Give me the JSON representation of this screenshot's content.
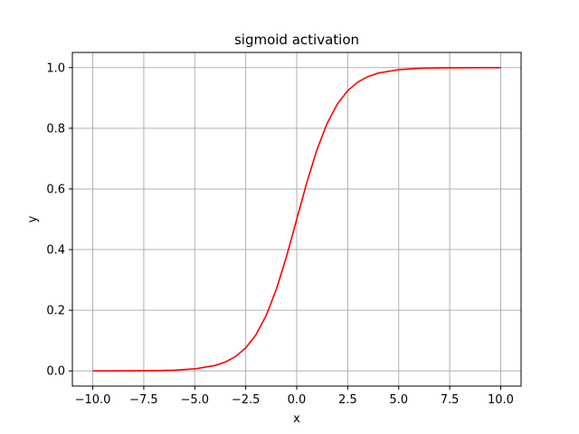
{
  "chart_data": {
    "type": "line",
    "title": "sigmoid activation",
    "xlabel": "x",
    "ylabel": "y",
    "xlim": [
      -11,
      11
    ],
    "ylim": [
      -0.05,
      1.05
    ],
    "grid": true,
    "x_ticks": [
      -10.0,
      -7.5,
      -5.0,
      -2.5,
      0.0,
      2.5,
      5.0,
      7.5,
      10.0
    ],
    "x_tick_labels": [
      "−10.0",
      "−7.5",
      "−5.0",
      "−2.5",
      "0.0",
      "2.5",
      "5.0",
      "7.5",
      "10.0"
    ],
    "y_ticks": [
      0.0,
      0.2,
      0.4,
      0.6,
      0.8,
      1.0
    ],
    "y_tick_labels": [
      "0.0",
      "0.2",
      "0.4",
      "0.6",
      "0.8",
      "1.0"
    ],
    "series": [
      {
        "color": "#ff0000",
        "x": [
          -10,
          -9,
          -8,
          -7,
          -6,
          -5,
          -4,
          -3.5,
          -3,
          -2.5,
          -2,
          -1.5,
          -1,
          -0.5,
          0,
          0.5,
          1,
          1.5,
          2,
          2.5,
          3,
          3.5,
          4,
          5,
          6,
          7,
          8,
          9,
          10
        ],
        "y": [
          5e-05,
          0.00012,
          0.00034,
          0.00091,
          0.00247,
          0.00669,
          0.01799,
          0.02931,
          0.04743,
          0.07586,
          0.1192,
          0.18243,
          0.26894,
          0.37754,
          0.5,
          0.62246,
          0.73106,
          0.81757,
          0.8808,
          0.92414,
          0.95257,
          0.97069,
          0.98201,
          0.99331,
          0.99753,
          0.99909,
          0.99966,
          0.99988,
          0.99995
        ]
      }
    ]
  }
}
